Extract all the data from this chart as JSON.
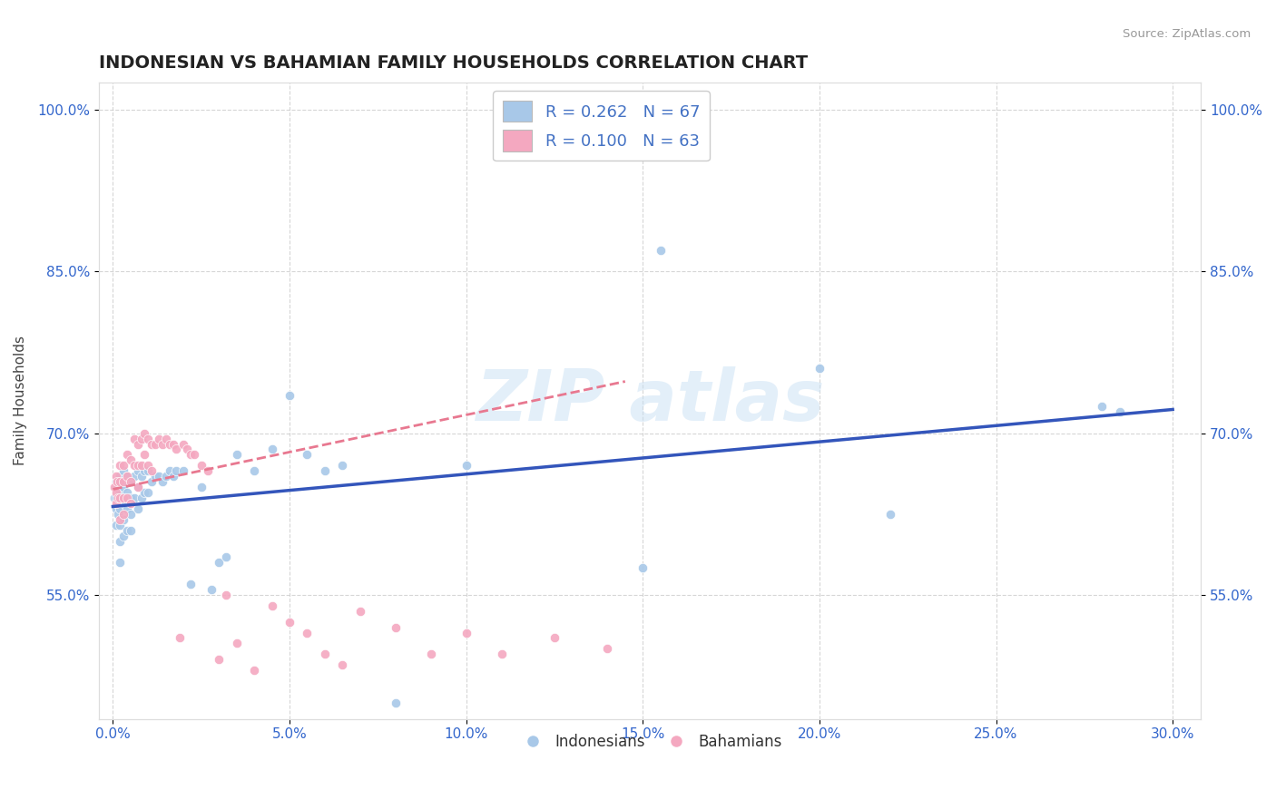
{
  "title": "INDONESIAN VS BAHAMIAN FAMILY HOUSEHOLDS CORRELATION CHART",
  "source_text": "Source: ZipAtlas.com",
  "ylabel": "Family Households",
  "xlim": [
    -0.004,
    0.308
  ],
  "ylim": [
    0.435,
    1.025
  ],
  "xticks": [
    0.0,
    0.05,
    0.1,
    0.15,
    0.2,
    0.25,
    0.3
  ],
  "xticklabels": [
    "0.0%",
    "5.0%",
    "10.0%",
    "15.0%",
    "20.0%",
    "25.0%",
    "30.0%"
  ],
  "yticks": [
    0.55,
    0.7,
    0.85,
    1.0
  ],
  "yticklabels": [
    "55.0%",
    "70.0%",
    "85.0%",
    "100.0%"
  ],
  "indonesian_color": "#A8C8E8",
  "bahamian_color": "#F4A8C0",
  "trend_indonesian_color": "#3355BB",
  "trend_bahamian_color": "#E87890",
  "R_indonesian": 0.262,
  "N_indonesian": 67,
  "R_bahamian": 0.1,
  "N_bahamian": 63,
  "indonesian_label": "Indonesians",
  "bahamian_label": "Bahamians",
  "background_color": "#ffffff",
  "grid_color": "#cccccc",
  "legend_text_color": "#4472C4",
  "title_color": "#222222",
  "source_color": "#999999",
  "ylabel_color": "#444444",
  "tick_color": "#3366CC",
  "title_fontsize": 14,
  "axis_label_fontsize": 11,
  "tick_fontsize": 11,
  "legend_fontsize": 13,
  "indonesian_x": [
    0.0005,
    0.001,
    0.001,
    0.001,
    0.001,
    0.0012,
    0.0015,
    0.0015,
    0.002,
    0.002,
    0.002,
    0.002,
    0.002,
    0.002,
    0.003,
    0.003,
    0.003,
    0.003,
    0.003,
    0.004,
    0.004,
    0.004,
    0.004,
    0.005,
    0.005,
    0.005,
    0.005,
    0.006,
    0.006,
    0.007,
    0.007,
    0.007,
    0.008,
    0.008,
    0.009,
    0.009,
    0.01,
    0.01,
    0.011,
    0.012,
    0.013,
    0.014,
    0.015,
    0.016,
    0.017,
    0.018,
    0.02,
    0.022,
    0.025,
    0.028,
    0.03,
    0.032,
    0.035,
    0.04,
    0.045,
    0.05,
    0.055,
    0.06,
    0.065,
    0.08,
    0.1,
    0.15,
    0.155,
    0.2,
    0.22,
    0.28,
    0.285
  ],
  "indonesian_y": [
    0.64,
    0.655,
    0.64,
    0.63,
    0.615,
    0.635,
    0.65,
    0.625,
    0.66,
    0.645,
    0.63,
    0.615,
    0.6,
    0.58,
    0.665,
    0.65,
    0.635,
    0.62,
    0.605,
    0.66,
    0.645,
    0.63,
    0.61,
    0.655,
    0.64,
    0.625,
    0.61,
    0.66,
    0.64,
    0.665,
    0.65,
    0.63,
    0.66,
    0.64,
    0.665,
    0.645,
    0.665,
    0.645,
    0.655,
    0.66,
    0.66,
    0.655,
    0.66,
    0.665,
    0.66,
    0.665,
    0.665,
    0.56,
    0.65,
    0.555,
    0.58,
    0.585,
    0.68,
    0.665,
    0.685,
    0.735,
    0.68,
    0.665,
    0.67,
    0.45,
    0.67,
    0.575,
    0.87,
    0.76,
    0.625,
    0.725,
    0.72
  ],
  "bahamian_x": [
    0.0005,
    0.001,
    0.001,
    0.001,
    0.0012,
    0.0015,
    0.002,
    0.002,
    0.002,
    0.002,
    0.003,
    0.003,
    0.003,
    0.003,
    0.004,
    0.004,
    0.004,
    0.005,
    0.005,
    0.005,
    0.006,
    0.006,
    0.007,
    0.007,
    0.007,
    0.008,
    0.008,
    0.009,
    0.009,
    0.01,
    0.01,
    0.011,
    0.011,
    0.012,
    0.013,
    0.014,
    0.015,
    0.016,
    0.017,
    0.018,
    0.019,
    0.02,
    0.021,
    0.022,
    0.023,
    0.025,
    0.027,
    0.03,
    0.032,
    0.035,
    0.04,
    0.045,
    0.05,
    0.055,
    0.06,
    0.065,
    0.07,
    0.08,
    0.09,
    0.1,
    0.11,
    0.125,
    0.14
  ],
  "bahamian_y": [
    0.65,
    0.66,
    0.645,
    0.635,
    0.655,
    0.64,
    0.67,
    0.655,
    0.64,
    0.62,
    0.67,
    0.655,
    0.64,
    0.625,
    0.68,
    0.66,
    0.64,
    0.675,
    0.655,
    0.635,
    0.695,
    0.67,
    0.69,
    0.67,
    0.65,
    0.695,
    0.67,
    0.7,
    0.68,
    0.695,
    0.67,
    0.69,
    0.665,
    0.69,
    0.695,
    0.69,
    0.695,
    0.69,
    0.69,
    0.685,
    0.51,
    0.69,
    0.685,
    0.68,
    0.68,
    0.67,
    0.665,
    0.49,
    0.55,
    0.505,
    0.48,
    0.54,
    0.525,
    0.515,
    0.495,
    0.485,
    0.535,
    0.52,
    0.495,
    0.515,
    0.495,
    0.51,
    0.5
  ],
  "trend_indo_x0": 0.0,
  "trend_indo_x1": 0.3,
  "trend_indo_y0": 0.632,
  "trend_indo_y1": 0.722,
  "trend_baha_x0": 0.0,
  "trend_baha_x1": 0.145,
  "trend_baha_y0": 0.648,
  "trend_baha_y1": 0.748
}
